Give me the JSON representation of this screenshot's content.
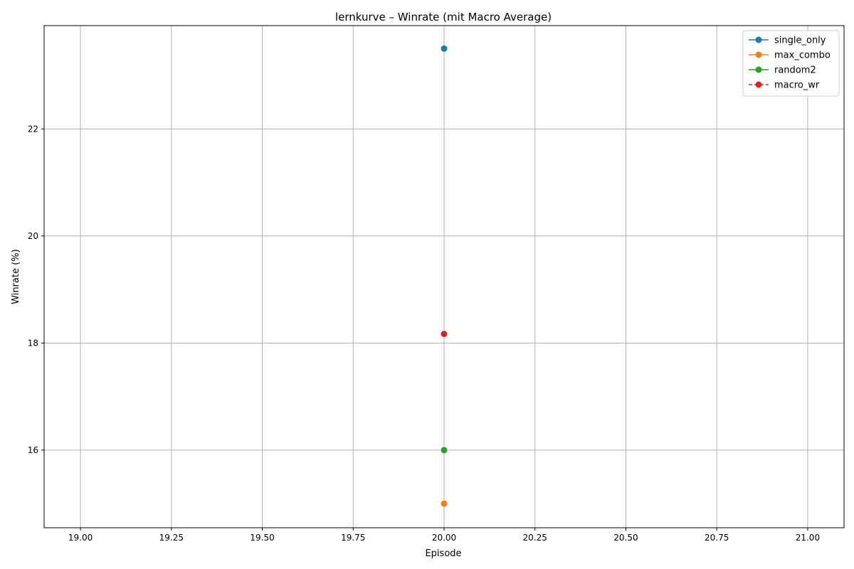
{
  "chart_data": {
    "type": "line",
    "title": "lernkurve – Winrate (mit Macro Average)",
    "xlabel": "Episode",
    "ylabel": "Winrate (%)",
    "xlim": [
      18.9,
      21.1
    ],
    "ylim": [
      14.55,
      23.93
    ],
    "xticks": [
      19.0,
      19.25,
      19.5,
      19.75,
      20.0,
      20.25,
      20.5,
      20.75,
      21.0
    ],
    "xtick_labels": [
      "19.00",
      "19.25",
      "19.50",
      "19.75",
      "20.00",
      "20.25",
      "20.50",
      "20.75",
      "21.00"
    ],
    "yticks": [
      16,
      18,
      20,
      22
    ],
    "ytick_labels": [
      "16",
      "18",
      "20",
      "22"
    ],
    "grid": true,
    "legend_position": "top-right",
    "series": [
      {
        "name": "single_only",
        "color": "#1f77b4",
        "linestyle": "solid",
        "x": [
          20
        ],
        "y": [
          23.5
        ]
      },
      {
        "name": "max_combo",
        "color": "#ff7f0e",
        "linestyle": "solid",
        "x": [
          20
        ],
        "y": [
          15.0
        ]
      },
      {
        "name": "random2",
        "color": "#2ca02c",
        "linestyle": "solid",
        "x": [
          20
        ],
        "y": [
          16.0
        ]
      },
      {
        "name": "macro_wr",
        "color": "#d62728",
        "linestyle": "dashed",
        "x": [
          20
        ],
        "y": [
          18.17
        ]
      }
    ]
  }
}
